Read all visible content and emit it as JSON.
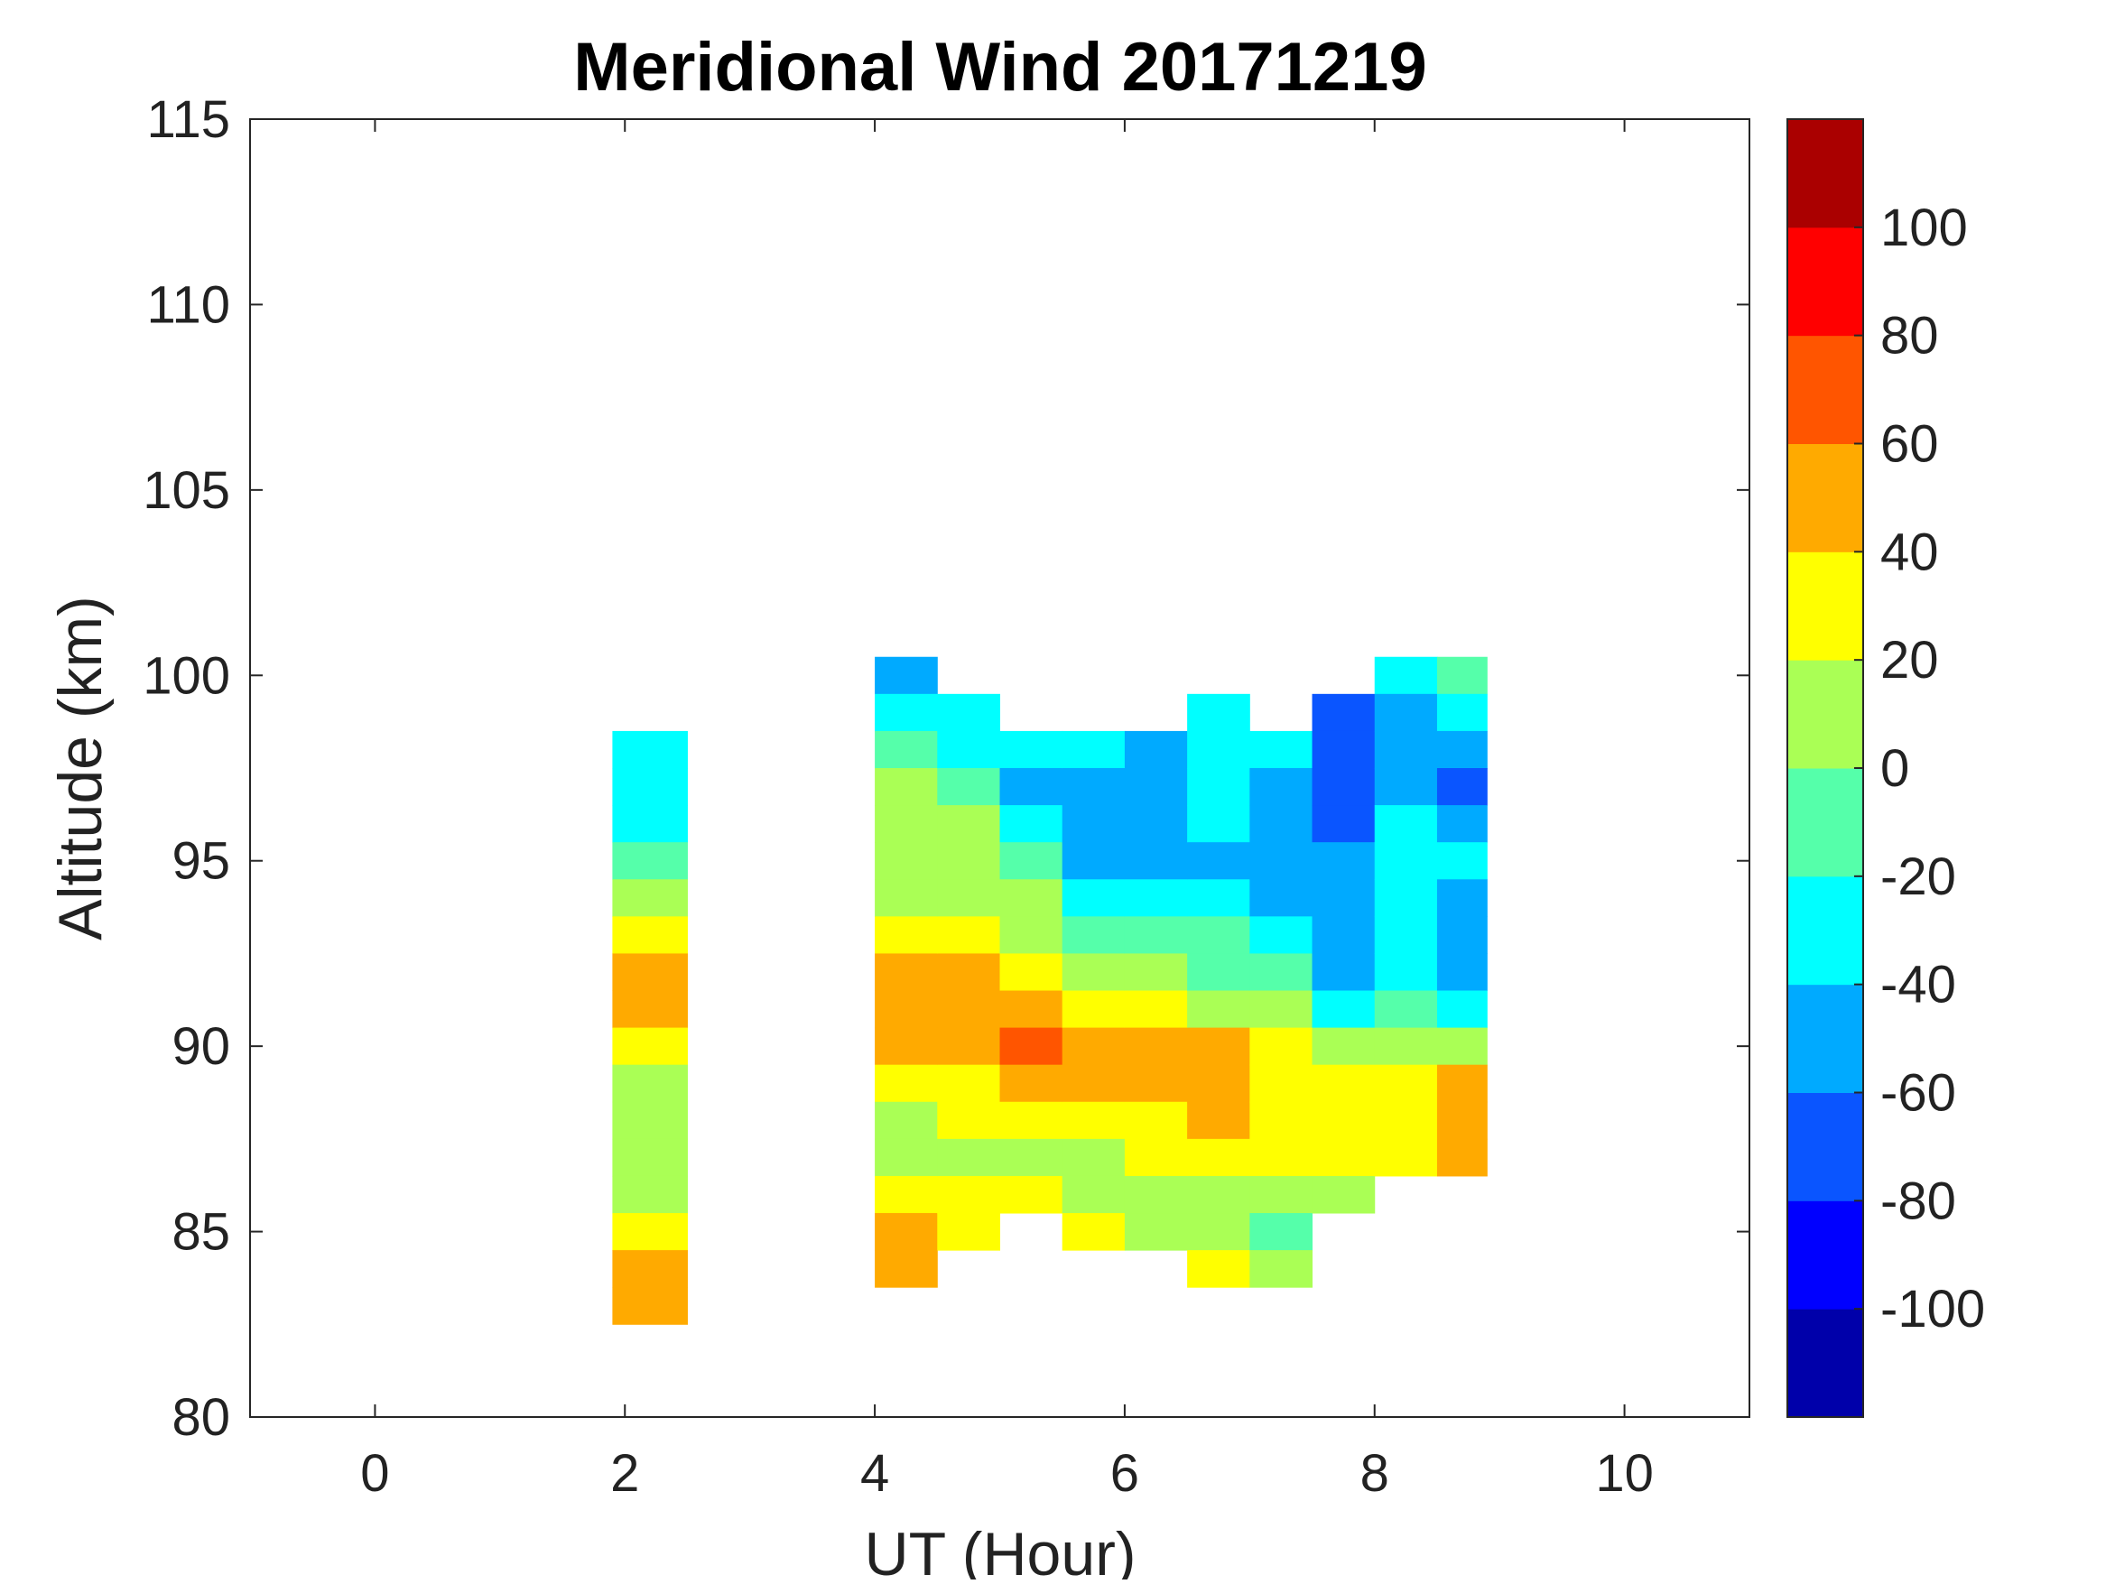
{
  "chart_data": {
    "type": "heatmap",
    "subtype": "filled-contour",
    "title": "Meridional Wind 20171219",
    "xlabel": "UT (Hour)",
    "ylabel": "Altitude (km)",
    "xlim": [
      -1,
      11
    ],
    "ylim": [
      80,
      115
    ],
    "xticks": [
      0,
      2,
      4,
      6,
      8,
      10
    ],
    "yticks": [
      80,
      85,
      90,
      95,
      100,
      105,
      110,
      115
    ],
    "colorbar": {
      "range": [
        -120,
        120
      ],
      "levels": [
        -120,
        -100,
        -80,
        -60,
        -40,
        -20,
        0,
        20,
        40,
        60,
        80,
        100,
        120
      ],
      "colors": [
        "#0000AA",
        "#0000FF",
        "#0A55FF",
        "#00AAFF",
        "#00FFFF",
        "#55FFAA",
        "#AAFF55",
        "#FFFF00",
        "#FFAA00",
        "#FF5500",
        "#FF0000",
        "#AA0000"
      ],
      "ticks": [
        -100,
        -80,
        -60,
        -40,
        -20,
        0,
        20,
        40,
        60,
        80,
        100
      ]
    },
    "altitudes": [
      100,
      99,
      98,
      97,
      96,
      95,
      94,
      93,
      92,
      91,
      90,
      89,
      88,
      87,
      86,
      85,
      84,
      83
    ],
    "series": [
      {
        "name": "UT 1.9-2.5",
        "ut": [
          1.9,
          2.5
        ],
        "values": [
          null,
          null,
          -30,
          -30,
          -30,
          -10,
          10,
          30,
          50,
          50,
          30,
          10,
          10,
          10,
          10,
          30,
          50,
          50
        ]
      },
      {
        "name": "UT 4.0-4.5",
        "ut": [
          4.0,
          4.5
        ],
        "values": [
          -50,
          -30,
          -10,
          10,
          10,
          10,
          10,
          30,
          50,
          50,
          50,
          30,
          10,
          10,
          30,
          50,
          50,
          null
        ]
      },
      {
        "name": "UT 4.5-5.0",
        "ut": [
          4.5,
          5.0
        ],
        "values": [
          null,
          -30,
          -30,
          -10,
          10,
          10,
          10,
          30,
          50,
          50,
          50,
          30,
          30,
          10,
          30,
          30,
          null,
          null
        ]
      },
      {
        "name": "UT 5.0-5.5",
        "ut": [
          5.0,
          5.5
        ],
        "values": [
          null,
          null,
          -30,
          -50,
          -30,
          -10,
          10,
          10,
          30,
          50,
          70,
          50,
          30,
          10,
          30,
          null,
          null,
          null
        ]
      },
      {
        "name": "UT 5.5-6.0",
        "ut": [
          5.5,
          6.0
        ],
        "values": [
          null,
          null,
          -30,
          -50,
          -50,
          -50,
          -30,
          -10,
          10,
          30,
          50,
          50,
          30,
          10,
          10,
          30,
          null,
          null
        ]
      },
      {
        "name": "UT 6.0-6.5",
        "ut": [
          6.0,
          6.5
        ],
        "values": [
          null,
          null,
          -50,
          -50,
          -50,
          -50,
          -30,
          -10,
          10,
          30,
          50,
          50,
          30,
          30,
          10,
          10,
          null,
          null
        ]
      },
      {
        "name": "UT 6.5-7.0",
        "ut": [
          6.5,
          7.0
        ],
        "values": [
          null,
          -30,
          -30,
          -30,
          -30,
          -50,
          -30,
          -10,
          -10,
          10,
          50,
          50,
          50,
          30,
          10,
          10,
          30,
          null
        ]
      },
      {
        "name": "UT 7.0-7.5",
        "ut": [
          7.0,
          7.5
        ],
        "values": [
          null,
          null,
          -30,
          -50,
          -50,
          -50,
          -50,
          -30,
          -10,
          10,
          30,
          30,
          30,
          30,
          10,
          -10,
          10,
          null
        ]
      },
      {
        "name": "UT 7.5-8.0",
        "ut": [
          7.5,
          8.0
        ],
        "values": [
          null,
          -70,
          -70,
          -70,
          -70,
          -50,
          -50,
          -50,
          -50,
          -30,
          10,
          30,
          30,
          30,
          10,
          null,
          null,
          null
        ]
      },
      {
        "name": "UT 8.0-8.5",
        "ut": [
          8.0,
          8.5
        ],
        "values": [
          -30,
          -50,
          -50,
          -50,
          -30,
          -30,
          -30,
          -30,
          -30,
          -10,
          10,
          30,
          30,
          30,
          null,
          null,
          null,
          null
        ]
      },
      {
        "name": "UT 8.5-8.9",
        "ut": [
          8.5,
          8.9
        ],
        "values": [
          -10,
          -30,
          -50,
          -70,
          -50,
          -30,
          -50,
          -50,
          -50,
          -30,
          10,
          50,
          50,
          50,
          null,
          null,
          null,
          null
        ]
      }
    ]
  }
}
